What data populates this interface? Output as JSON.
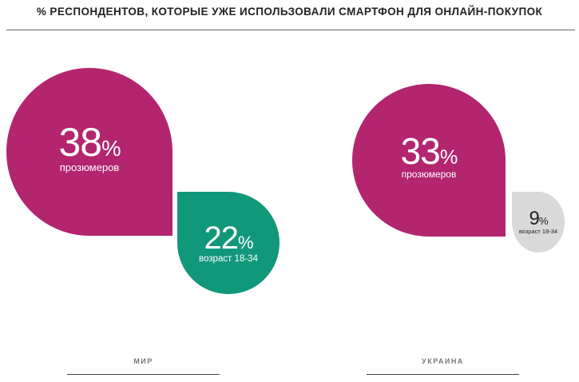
{
  "chart_data": {
    "type": "bubble",
    "title": "% РЕСПОНДЕНТОВ, КОТОРЫЕ УЖЕ ИСПОЛЬЗОВАЛИ СМАРТФОН ДЛЯ ОНЛАЙН-ПОКУПОК",
    "groups": [
      {
        "name": "МИР",
        "items": [
          {
            "value": 38,
            "unit": "%",
            "label": "прозюмеров",
            "color": "#b3256f"
          },
          {
            "value": 22,
            "unit": "%",
            "label": "возраст 18-34",
            "color": "#11987a"
          }
        ]
      },
      {
        "name": "УКРАИНА",
        "items": [
          {
            "value": 33,
            "unit": "%",
            "label": "прозюмеров",
            "color": "#b3256f"
          },
          {
            "value": 9,
            "unit": "%",
            "label": "возраст 18-34",
            "color": "#d9d9d9"
          }
        ]
      }
    ]
  }
}
